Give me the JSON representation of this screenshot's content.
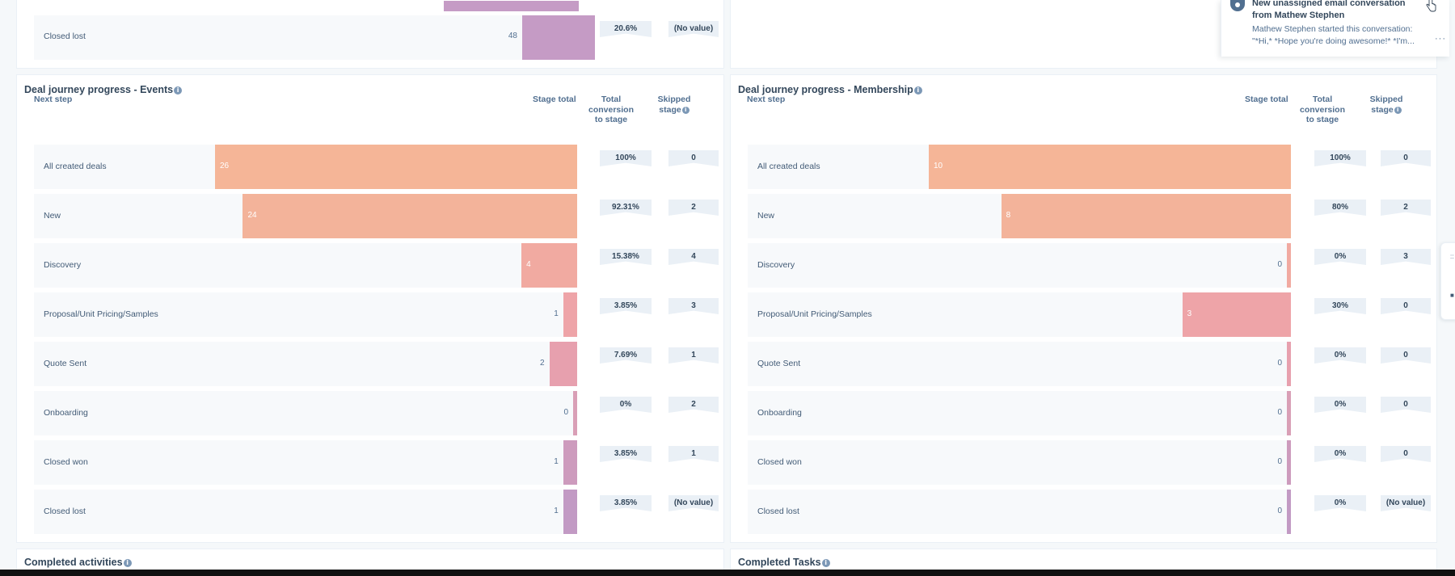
{
  "top_left": {
    "rows": [
      {
        "label": "Closed lost",
        "value": "48",
        "conversion": "20.6%",
        "skipped": "(No value)"
      }
    ]
  },
  "notification": {
    "title": "New unassigned email conversation from Mathew Stephen",
    "body": "Mathew Stephen started this conversation: \"*Hi,* *Hope you're doing awesome!* *I'm...",
    "more": "···"
  },
  "panels": [
    {
      "title": "Deal journey progress - Events",
      "header": {
        "next_step": "Next step",
        "stage_total": "Stage total",
        "conversion": "Total conversion to stage",
        "skipped": "Skipped stage"
      },
      "rows": [
        {
          "label": "All created deals",
          "value": "26",
          "conversion": "100%",
          "skipped": "0",
          "color": "#f5b597"
        },
        {
          "label": "New",
          "value": "24",
          "conversion": "92.31%",
          "skipped": "2",
          "color": "#f3b39a"
        },
        {
          "label": "Discovery",
          "value": "4",
          "conversion": "15.38%",
          "skipped": "4",
          "color": "#f1aaa1"
        },
        {
          "label": "Proposal/Unit Pricing/Samples",
          "value": "1",
          "conversion": "3.85%",
          "skipped": "3",
          "color": "#eea4a8"
        },
        {
          "label": "Quote Sent",
          "value": "2",
          "conversion": "7.69%",
          "skipped": "1",
          "color": "#e7a0ae"
        },
        {
          "label": "Onboarding",
          "value": "0",
          "conversion": "0%",
          "skipped": "2",
          "color": "#d99fb6"
        },
        {
          "label": "Closed won",
          "value": "1",
          "conversion": "3.85%",
          "skipped": "1",
          "color": "#cd9bbd"
        },
        {
          "label": "Closed lost",
          "value": "1",
          "conversion": "3.85%",
          "skipped": "(No value)",
          "color": "#c29ac4"
        }
      ]
    },
    {
      "title": "Deal journey progress - Membership",
      "header": {
        "next_step": "Next step",
        "stage_total": "Stage total",
        "conversion": "Total conversion to stage",
        "skipped": "Skipped stage"
      },
      "rows": [
        {
          "label": "All created deals",
          "value": "10",
          "conversion": "100%",
          "skipped": "0",
          "color": "#f5b597"
        },
        {
          "label": "New",
          "value": "8",
          "conversion": "80%",
          "skipped": "2",
          "color": "#f3b39a"
        },
        {
          "label": "Discovery",
          "value": "0",
          "conversion": "0%",
          "skipped": "3",
          "color": "#f1aaa1"
        },
        {
          "label": "Proposal/Unit Pricing/Samples",
          "value": "3",
          "conversion": "30%",
          "skipped": "0",
          "color": "#eea4a8"
        },
        {
          "label": "Quote Sent",
          "value": "0",
          "conversion": "0%",
          "skipped": "0",
          "color": "#e7a0ae"
        },
        {
          "label": "Onboarding",
          "value": "0",
          "conversion": "0%",
          "skipped": "0",
          "color": "#d99fb6"
        },
        {
          "label": "Closed won",
          "value": "0",
          "conversion": "0%",
          "skipped": "0",
          "color": "#cd9bbd"
        },
        {
          "label": "Closed lost",
          "value": "0",
          "conversion": "0%",
          "skipped": "(No value)",
          "color": "#c29ac4"
        }
      ]
    }
  ],
  "bottom": {
    "left_title": "Completed activities",
    "right_title": "Completed Tasks"
  },
  "edge_widget": {
    "glyph_top": "::",
    "glyph_bottom": "■"
  }
}
